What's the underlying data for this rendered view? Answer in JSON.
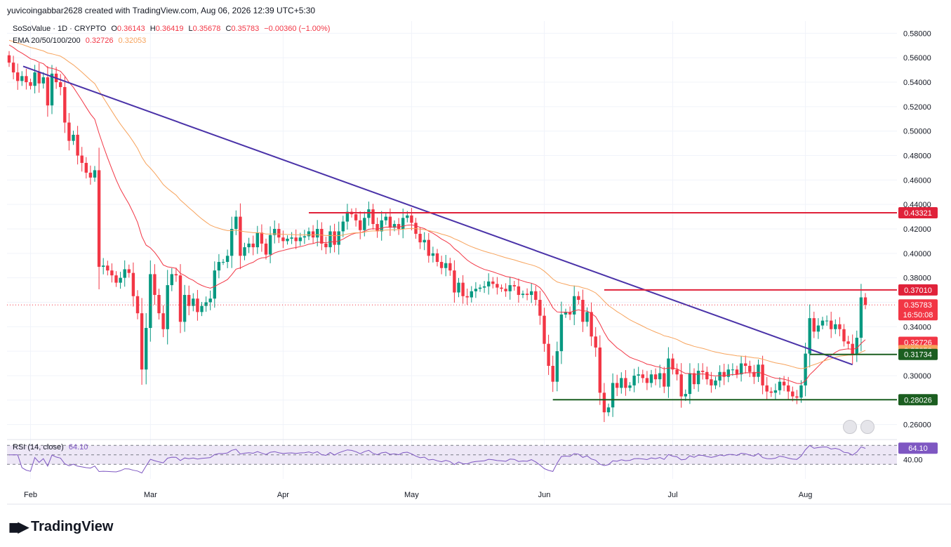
{
  "header": {
    "text": "yuvicoingabbar2628 created with TradingView.com, Aug 06, 2026 12:39 UTC+5:30"
  },
  "legend": {
    "symbol": "SoSoValue · 1D · CRYPTO",
    "o_label": "O",
    "o_val": "0.36143",
    "h_label": "H",
    "h_val": "0.36419",
    "l_label": "L",
    "l_val": "0.35678",
    "c_label": "C",
    "c_val": "0.35783",
    "change": "−0.00360 (−1.00%)",
    "ema_label": "EMA 20/50/100/200",
    "ema20": "0.32726",
    "ema50": "0.32053"
  },
  "rsi_legend": {
    "label": "RSI (14, close)",
    "value": "64.10"
  },
  "logo": {
    "text": "TradingView"
  },
  "colors": {
    "up": "#089981",
    "down": "#f23645",
    "ema20": "#f23645",
    "ema50": "#f7a35c",
    "trendline": "#4a32a8",
    "resistance": "#e0223a",
    "support": "#1b5e20",
    "rsi": "#7e57c2",
    "rsi_band": "#ede7f6"
  },
  "chart_data": {
    "type": "candlestick",
    "y_axis": {
      "min": 0.25,
      "max": 0.59,
      "ticks": [
        "0.26000",
        "0.28000",
        "0.30000",
        "0.32000",
        "0.34000",
        "0.36000",
        "0.38000",
        "0.40000",
        "0.42000",
        "0.44000",
        "0.46000",
        "0.48000",
        "0.50000",
        "0.52000",
        "0.54000",
        "0.56000",
        "0.58000"
      ]
    },
    "x_axis": {
      "start_date": "2026-01-27",
      "labels": [
        {
          "label": "Feb",
          "day": 5
        },
        {
          "label": "Mar",
          "day": 33
        },
        {
          "label": "Apr",
          "day": 64
        },
        {
          "label": "May",
          "day": 94
        },
        {
          "label": "Jun",
          "day": 125
        },
        {
          "label": "Jul",
          "day": 155
        },
        {
          "label": "Aug",
          "day": 186
        }
      ]
    },
    "price_tags": [
      {
        "value": 0.43321,
        "text": "0.43321",
        "color": "#e0223a"
      },
      {
        "value": 0.3701,
        "text": "0.37010",
        "color": "#e0223a"
      },
      {
        "value": 0.35783,
        "text": "0.35783",
        "sub": "16:50:08",
        "color": "#f23645"
      },
      {
        "value": 0.32726,
        "text": "0.32726",
        "color": "#f23645"
      },
      {
        "value": 0.32053,
        "text": "0.32053",
        "color": "#f7a35c"
      },
      {
        "value": 0.31734,
        "text": "0.31734",
        "color": "#1b5e20"
      },
      {
        "value": 0.28026,
        "text": "0.28026",
        "color": "#1b5e20"
      }
    ],
    "horizontal_lines": [
      {
        "value": 0.43321,
        "from_day": 70,
        "color": "#e0223a"
      },
      {
        "value": 0.3701,
        "from_day": 139,
        "color": "#e0223a"
      },
      {
        "value": 0.31734,
        "from_day": 187,
        "color": "#1b5e20"
      },
      {
        "value": 0.28026,
        "from_day": 127,
        "color": "#1b5e20"
      }
    ],
    "trendline": {
      "from": {
        "day": 0,
        "price": 0.553
      },
      "to": {
        "day": 197,
        "price": 0.309
      }
    },
    "last_close": 0.35783,
    "closes": [
      0.556,
      0.548,
      0.541,
      0.545,
      0.54,
      0.537,
      0.548,
      0.539,
      0.544,
      0.521,
      0.547,
      0.54,
      0.536,
      0.507,
      0.492,
      0.497,
      0.48,
      0.474,
      0.466,
      0.462,
      0.468,
      0.389,
      0.39,
      0.386,
      0.382,
      0.376,
      0.38,
      0.387,
      0.384,
      0.365,
      0.351,
      0.305,
      0.339,
      0.383,
      0.366,
      0.351,
      0.338,
      0.374,
      0.383,
      0.382,
      0.344,
      0.366,
      0.357,
      0.363,
      0.352,
      0.357,
      0.36,
      0.363,
      0.386,
      0.393,
      0.393,
      0.398,
      0.42,
      0.43,
      0.398,
      0.405,
      0.408,
      0.405,
      0.417,
      0.408,
      0.399,
      0.415,
      0.42,
      0.413,
      0.41,
      0.412,
      0.413,
      0.41,
      0.413,
      0.414,
      0.418,
      0.413,
      0.42,
      0.408,
      0.405,
      0.418,
      0.407,
      0.418,
      0.426,
      0.434,
      0.432,
      0.427,
      0.419,
      0.429,
      0.436,
      0.424,
      0.418,
      0.427,
      0.43,
      0.421,
      0.424,
      0.42,
      0.429,
      0.431,
      0.425,
      0.416,
      0.409,
      0.411,
      0.398,
      0.4,
      0.393,
      0.388,
      0.392,
      0.386,
      0.368,
      0.376,
      0.365,
      0.364,
      0.369,
      0.371,
      0.372,
      0.373,
      0.377,
      0.375,
      0.372,
      0.371,
      0.369,
      0.374,
      0.373,
      0.366,
      0.367,
      0.366,
      0.369,
      0.362,
      0.349,
      0.326,
      0.308,
      0.295,
      0.32,
      0.35,
      0.352,
      0.35,
      0.365,
      0.362,
      0.344,
      0.352,
      0.332,
      0.323,
      0.286,
      0.27,
      0.274,
      0.294,
      0.29,
      0.298,
      0.29,
      0.292,
      0.3,
      0.301,
      0.298,
      0.294,
      0.301,
      0.297,
      0.302,
      0.291,
      0.314,
      0.305,
      0.301,
      0.283,
      0.285,
      0.302,
      0.293,
      0.304,
      0.303,
      0.297,
      0.292,
      0.296,
      0.303,
      0.299,
      0.305,
      0.305,
      0.301,
      0.31,
      0.308,
      0.303,
      0.299,
      0.309,
      0.292,
      0.287,
      0.286,
      0.288,
      0.295,
      0.292,
      0.287,
      0.283,
      0.282,
      0.292,
      0.318,
      0.347,
      0.336,
      0.341,
      0.345,
      0.345,
      0.338,
      0.342,
      0.338,
      0.328,
      0.326,
      0.317,
      0.331,
      0.364,
      0.35783
    ],
    "ema20": "computed from closes",
    "ema50": "computed from closes",
    "rsi": {
      "period": 14,
      "upper": 70,
      "lower": 30,
      "tick": "40.00"
    }
  }
}
